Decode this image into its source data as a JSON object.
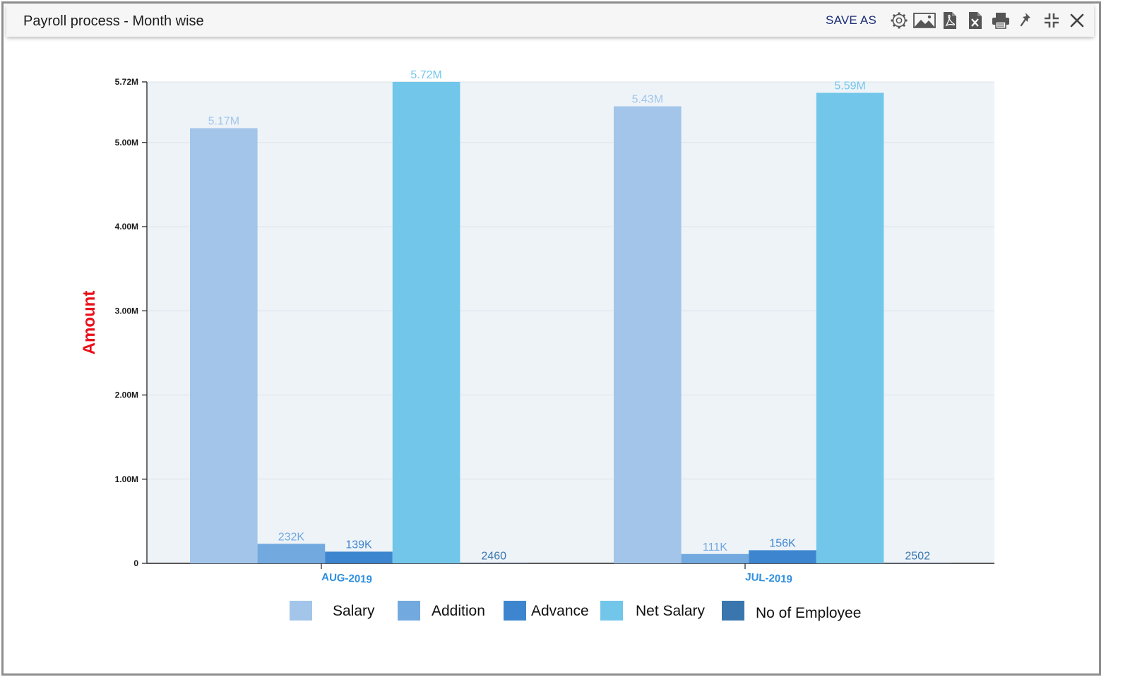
{
  "window": {
    "title": "Payroll process - Month wise",
    "save_as_label": "SAVE AS",
    "tools": [
      {
        "icon": "gear-icon"
      },
      {
        "icon": "image-icon"
      },
      {
        "icon": "pdf-icon"
      },
      {
        "icon": "excel-icon"
      },
      {
        "icon": "print-icon"
      },
      {
        "icon": "pin-icon"
      },
      {
        "icon": "collapse-icon"
      },
      {
        "icon": "close-icon"
      }
    ]
  },
  "colors": {
    "salary": "#a2c5e9",
    "addition": "#72a9df",
    "advance": "#3d86cf",
    "net_salary": "#71c6ea",
    "no_of_employee": "#3976ad",
    "axis_title": "#e8101a",
    "x_labels": "#2f8fe0",
    "plot_bg": "#eef3f8",
    "grid": "#dde3ea"
  },
  "chart_data": {
    "type": "bar",
    "categories": [
      "AUG-2019",
      "JUL-2019"
    ],
    "ylabel": "Amount",
    "ylim": [
      0,
      5720000
    ],
    "yticks": [
      {
        "value": 0,
        "label": "0"
      },
      {
        "value": 1000000,
        "label": "1.00M"
      },
      {
        "value": 2000000,
        "label": "2.00M"
      },
      {
        "value": 3000000,
        "label": "3.00M"
      },
      {
        "value": 4000000,
        "label": "4.00M"
      },
      {
        "value": 5000000,
        "label": "5.00M"
      },
      {
        "value": 5720000,
        "label": "5.72M"
      }
    ],
    "grid": true,
    "legend_position": "bottom",
    "series": [
      {
        "name": "Salary",
        "values": [
          5170000,
          5430000
        ],
        "labels": [
          "5.17M",
          "5.43M"
        ]
      },
      {
        "name": "Addition",
        "values": [
          232000,
          111000
        ],
        "labels": [
          "232K",
          "111K"
        ]
      },
      {
        "name": "Advance",
        "values": [
          139000,
          156000
        ],
        "labels": [
          "139K",
          "156K"
        ]
      },
      {
        "name": "Net Salary",
        "values": [
          5720000,
          5590000
        ],
        "labels": [
          "5.72M",
          "5.59M"
        ]
      },
      {
        "name": "No of Employee",
        "values": [
          2460,
          2502
        ],
        "labels": [
          "2460",
          "2502"
        ]
      }
    ]
  }
}
